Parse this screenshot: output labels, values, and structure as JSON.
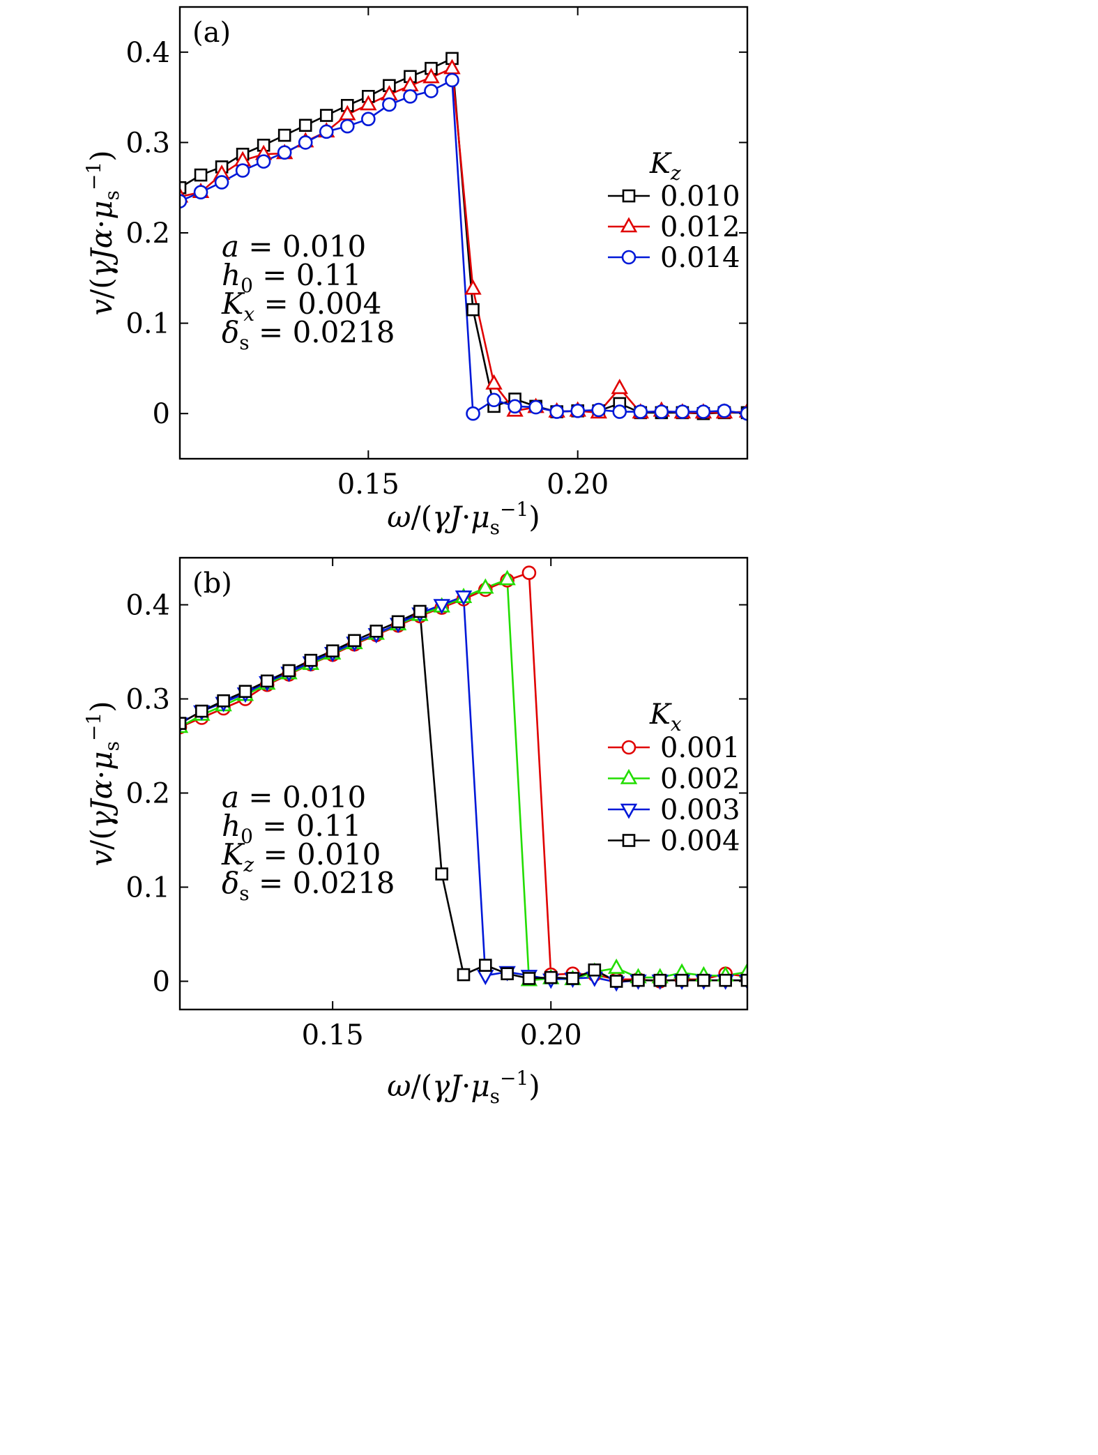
{
  "chart_data": [
    {
      "type": "line",
      "panel_label": "(a)",
      "xlabel": "ω/(γJ·μs⁻¹)",
      "ylabel": "v/(γJα·μs⁻¹)",
      "xlim": [
        0.105,
        0.2405
      ],
      "ylim": [
        -0.05,
        0.45
      ],
      "xticks": [
        0.15,
        0.2
      ],
      "xtick_labels": [
        "0.15",
        "0.20"
      ],
      "yticks": [
        0,
        0.1,
        0.2,
        0.3,
        0.4
      ],
      "ytick_labels": [
        "0",
        "0.1",
        "0.2",
        "0.3",
        "0.4"
      ],
      "annotation": [
        "a = 0.010",
        "h0 = 0.11",
        "Kx = 0.004",
        "δs = 0.0218"
      ],
      "legend": {
        "title": "Kz",
        "position": "right"
      },
      "series": [
        {
          "name": "0.010",
          "color": "#000000",
          "marker": "square",
          "x": [
            0.105,
            0.11,
            0.115,
            0.12,
            0.125,
            0.13,
            0.135,
            0.14,
            0.145,
            0.15,
            0.155,
            0.16,
            0.165,
            0.17,
            0.175,
            0.18,
            0.185,
            0.19,
            0.195,
            0.2,
            0.205,
            0.21,
            0.215,
            0.22,
            0.225,
            0.23,
            0.235,
            0.2405
          ],
          "y": [
            0.25,
            0.264,
            0.273,
            0.287,
            0.297,
            0.308,
            0.319,
            0.33,
            0.341,
            0.351,
            0.363,
            0.373,
            0.382,
            0.393,
            0.115,
            0.008,
            0.016,
            0.008,
            0.002,
            0.003,
            0.003,
            0.011,
            0.001,
            0.001,
            0.001,
            0.0,
            0.001,
            0.001
          ]
        },
        {
          "name": "0.012",
          "color": "#e00000",
          "marker": "triangle-up",
          "x": [
            0.105,
            0.11,
            0.115,
            0.12,
            0.125,
            0.13,
            0.135,
            0.14,
            0.145,
            0.15,
            0.155,
            0.16,
            0.165,
            0.17,
            0.175,
            0.18,
            0.185,
            0.19,
            0.195,
            0.2,
            0.205,
            0.21,
            0.215,
            0.22,
            0.225,
            0.23,
            0.235,
            0.2405
          ],
          "y": [
            0.24,
            0.245,
            0.265,
            0.28,
            0.287,
            0.288,
            0.301,
            0.312,
            0.331,
            0.342,
            0.353,
            0.363,
            0.372,
            0.382,
            0.138,
            0.033,
            0.003,
            0.007,
            0.002,
            0.003,
            0.001,
            0.028,
            0.001,
            0.003,
            0.001,
            0.001,
            0.001,
            0.002
          ]
        },
        {
          "name": "0.014",
          "color": "#0018d8",
          "marker": "circle",
          "x": [
            0.105,
            0.11,
            0.115,
            0.12,
            0.125,
            0.13,
            0.135,
            0.14,
            0.145,
            0.15,
            0.155,
            0.16,
            0.165,
            0.17,
            0.175,
            0.18,
            0.185,
            0.19,
            0.195,
            0.2,
            0.205,
            0.21,
            0.215,
            0.22,
            0.225,
            0.23,
            0.235,
            0.2405
          ],
          "y": [
            0.235,
            0.245,
            0.256,
            0.269,
            0.279,
            0.289,
            0.3,
            0.312,
            0.318,
            0.326,
            0.342,
            0.351,
            0.357,
            0.369,
            0.0,
            0.015,
            0.008,
            0.007,
            0.002,
            0.003,
            0.004,
            0.002,
            0.002,
            0.002,
            0.002,
            0.002,
            0.003,
            0.0
          ]
        }
      ]
    },
    {
      "type": "line",
      "panel_label": "(b)",
      "xlabel": "ω/(γJ·μs⁻¹)",
      "ylabel": "v/(γJα·μs⁻¹)",
      "xlim": [
        0.115,
        0.245
      ],
      "ylim": [
        -0.03,
        0.45
      ],
      "xticks": [
        0.15,
        0.2
      ],
      "xtick_labels": [
        "0.15",
        "0.20"
      ],
      "yticks": [
        0,
        0.1,
        0.2,
        0.3,
        0.4
      ],
      "ytick_labels": [
        "0",
        "0.1",
        "0.2",
        "0.3",
        "0.4"
      ],
      "annotation": [
        "a = 0.010",
        "h0 = 0.11",
        "Kz = 0.010",
        "δs = 0.0218"
      ],
      "legend": {
        "title": "Kx",
        "position": "right"
      },
      "series": [
        {
          "name": "0.001",
          "color": "#e00000",
          "marker": "circle",
          "x": [
            0.115,
            0.12,
            0.125,
            0.13,
            0.135,
            0.14,
            0.145,
            0.15,
            0.155,
            0.16,
            0.165,
            0.17,
            0.175,
            0.18,
            0.185,
            0.19,
            0.195,
            0.2,
            0.205,
            0.21,
            0.215,
            0.22,
            0.225,
            0.23,
            0.235,
            0.24,
            0.245
          ],
          "y": [
            0.27,
            0.28,
            0.29,
            0.3,
            0.315,
            0.326,
            0.337,
            0.347,
            0.358,
            0.368,
            0.378,
            0.388,
            0.397,
            0.406,
            0.416,
            0.426,
            0.434,
            0.007,
            0.008,
            0.007,
            0.002,
            0.002,
            0.0,
            0.002,
            0.002,
            0.008,
            0.005
          ]
        },
        {
          "name": "0.002",
          "color": "#22dd00",
          "marker": "triangle-up",
          "x": [
            0.115,
            0.12,
            0.125,
            0.13,
            0.135,
            0.14,
            0.145,
            0.15,
            0.155,
            0.16,
            0.165,
            0.17,
            0.175,
            0.18,
            0.185,
            0.19,
            0.195,
            0.2,
            0.205,
            0.21,
            0.215,
            0.22,
            0.225,
            0.23,
            0.235,
            0.24,
            0.245
          ],
          "y": [
            0.27,
            0.283,
            0.293,
            0.304,
            0.316,
            0.327,
            0.337,
            0.348,
            0.359,
            0.369,
            0.379,
            0.389,
            0.398,
            0.408,
            0.418,
            0.427,
            0.001,
            0.003,
            0.002,
            0.01,
            0.014,
            0.004,
            0.004,
            0.009,
            0.006,
            0.006,
            0.01
          ]
        },
        {
          "name": "0.003",
          "color": "#0018d8",
          "marker": "triangle-down",
          "x": [
            0.115,
            0.12,
            0.125,
            0.13,
            0.135,
            0.14,
            0.145,
            0.15,
            0.155,
            0.16,
            0.165,
            0.17,
            0.175,
            0.18,
            0.185,
            0.19,
            0.195,
            0.2,
            0.205,
            0.21,
            0.215,
            0.22,
            0.225,
            0.23,
            0.235,
            0.24,
            0.245
          ],
          "y": [
            0.274,
            0.287,
            0.296,
            0.306,
            0.318,
            0.328,
            0.339,
            0.349,
            0.36,
            0.369,
            0.38,
            0.391,
            0.4,
            0.409,
            0.006,
            0.01,
            0.006,
            0.002,
            0.003,
            0.004,
            -0.001,
            0.001,
            0.001,
            0.001,
            0.001,
            0.001,
            0.001
          ]
        },
        {
          "name": "0.004",
          "color": "#000000",
          "marker": "square",
          "x": [
            0.115,
            0.12,
            0.125,
            0.13,
            0.135,
            0.14,
            0.145,
            0.15,
            0.155,
            0.16,
            0.165,
            0.17,
            0.175,
            0.18,
            0.185,
            0.19,
            0.195,
            0.2,
            0.205,
            0.21,
            0.215,
            0.22,
            0.225,
            0.23,
            0.235,
            0.24,
            0.245
          ],
          "y": [
            0.274,
            0.287,
            0.298,
            0.308,
            0.319,
            0.33,
            0.341,
            0.351,
            0.362,
            0.372,
            0.382,
            0.393,
            0.114,
            0.007,
            0.017,
            0.008,
            0.003,
            0.004,
            0.003,
            0.012,
            0.0,
            0.001,
            0.001,
            0.001,
            0.001,
            0.001,
            0.001
          ]
        }
      ]
    }
  ]
}
